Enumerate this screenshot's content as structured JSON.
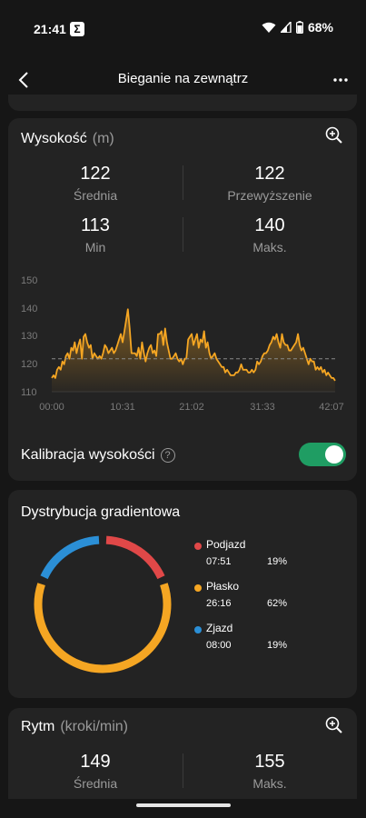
{
  "status_bar": {
    "time": "21:41",
    "app_icon": "Σ",
    "battery": "68%"
  },
  "header": {
    "title": "Bieganie na zewnątrz"
  },
  "altitude": {
    "title": "Wysokość",
    "unit": "(m)",
    "stats": [
      {
        "value": "122",
        "label": "Średnia"
      },
      {
        "value": "122",
        "label": "Przewyższenie"
      },
      {
        "value": "113",
        "label": "Min"
      },
      {
        "value": "140",
        "label": "Maks."
      }
    ],
    "calibration_label": "Kalibracja wysokości",
    "calibration_enabled": true
  },
  "chart_data": {
    "type": "area",
    "title": "",
    "xlabel": "",
    "ylabel": "",
    "x_ticks": [
      "00:00",
      "10:31",
      "21:02",
      "31:33",
      "42:07"
    ],
    "y_ticks": [
      "150",
      "140",
      "130",
      "120",
      "110"
    ],
    "ylim": [
      110,
      150
    ],
    "average_line": 122,
    "color": "#f5a623",
    "series": [
      {
        "values": [
          115,
          116,
          115,
          118,
          119,
          118,
          121,
          120,
          123,
          124,
          122,
          126,
          125,
          128,
          124,
          127,
          129,
          122,
          130,
          131,
          128,
          126,
          127,
          122,
          124,
          123,
          122,
          123,
          122,
          124,
          127,
          126,
          124,
          125,
          126,
          124,
          125,
          127,
          129,
          131,
          128,
          132,
          136,
          140,
          133,
          124,
          124,
          124,
          123,
          126,
          122,
          128,
          124,
          121,
          124,
          126,
          127,
          124,
          125,
          123,
          131,
          131,
          132,
          127,
          133,
          128,
          125,
          122,
          122,
          123,
          124,
          122,
          121,
          122,
          120,
          122,
          122,
          129,
          130,
          131,
          127,
          129,
          131,
          126,
          129,
          128,
          132,
          126,
          128,
          124,
          122,
          123,
          124,
          122,
          121,
          120,
          119,
          119,
          117,
          118,
          117,
          116,
          116,
          116,
          117,
          117,
          118,
          120,
          118,
          118,
          118,
          117,
          117,
          118,
          117,
          118,
          121,
          120,
          121,
          123,
          124,
          124,
          125,
          127,
          128,
          130,
          129,
          131,
          128,
          126,
          131,
          128,
          127,
          127,
          125,
          125,
          126,
          127,
          128,
          131,
          127,
          125,
          126,
          124,
          122,
          120,
          122,
          121,
          121,
          118,
          119,
          118,
          119,
          117,
          118,
          116,
          117,
          116,
          115,
          115,
          114
        ]
      }
    ]
  },
  "gradient": {
    "title": "Dystrybucja gradientowa",
    "items": [
      {
        "name": "Podjazd",
        "time": "07:51",
        "percent": "19%",
        "fraction": 0.19,
        "color": "#e04848"
      },
      {
        "name": "Płasko",
        "time": "26:16",
        "percent": "62%",
        "fraction": 0.62,
        "color": "#f5a623"
      },
      {
        "name": "Zjazd",
        "time": "08:00",
        "percent": "19%",
        "fraction": 0.19,
        "color": "#2b8fd6"
      }
    ]
  },
  "cadence": {
    "title": "Rytm",
    "unit": "(kroki/min)",
    "stats": [
      {
        "value": "149",
        "label": "Średnia"
      },
      {
        "value": "155",
        "label": "Maks."
      }
    ]
  }
}
